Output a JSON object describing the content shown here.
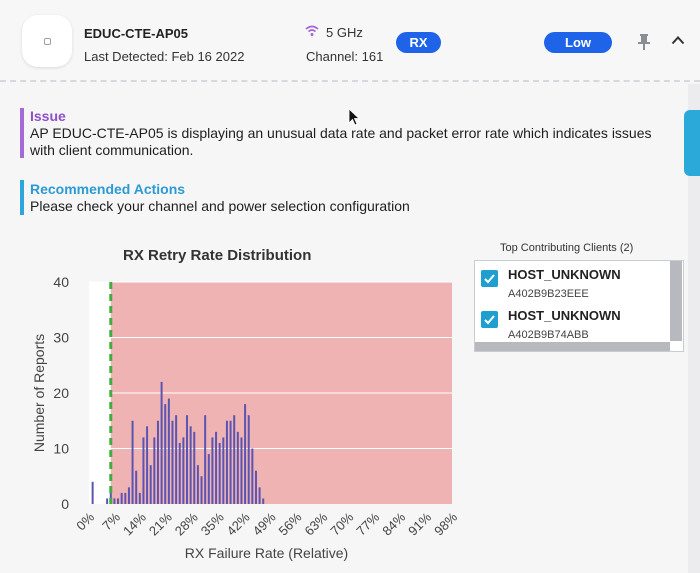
{
  "header": {
    "ap_name": "EDUC-CTE-AP05",
    "last_detected": "Last Detected: Feb 16 2022",
    "band": "5 GHz",
    "channel": "Channel: 161",
    "type_badge": "RX",
    "severity_badge": "Low"
  },
  "issue": {
    "title": "Issue",
    "text": "AP EDUC-CTE-AP05 is displaying an unusual data rate and packet error rate which indicates issues with client communication."
  },
  "recommended": {
    "title": "Recommended Actions",
    "text": "Please check your channel and power selection configuration"
  },
  "clients": {
    "title": "Top Contributing Clients (2)",
    "items": [
      {
        "name": "HOST_UNKNOWN",
        "mac": "A402B9B23EEE"
      },
      {
        "name": "HOST_UNKNOWN",
        "mac": "A402B9B74ABB"
      }
    ]
  },
  "colors": {
    "accent": "#1e63e8",
    "issue": "#8e4fc9",
    "recommended": "#2b9bd4",
    "threshold": "#3fae3f",
    "highlight_region": "#f0b3b3",
    "bars": "#5a55b2"
  },
  "chart_data": {
    "type": "bar",
    "title": "RX Retry Rate Distribution",
    "xlabel": "RX Failure Rate (Relative)",
    "ylabel": "Number of Reports",
    "ylim": [
      0,
      40
    ],
    "yticks": [
      "0",
      "10",
      "20",
      "30",
      "40"
    ],
    "xticks": [
      "0%",
      "7%",
      "14%",
      "21%",
      "28%",
      "35%",
      "42%",
      "49%",
      "56%",
      "63%",
      "70%",
      "77%",
      "84%",
      "91%",
      "98%"
    ],
    "xlim": [
      0,
      100
    ],
    "threshold": 6,
    "highlight_range": [
      6,
      100
    ],
    "grid": true,
    "x": [
      1,
      5,
      6,
      7,
      8,
      9,
      10,
      11,
      12,
      13,
      14,
      15,
      16,
      17,
      18,
      19,
      20,
      21,
      22,
      23,
      24,
      25,
      26,
      27,
      28,
      29,
      30,
      31,
      32,
      33,
      34,
      35,
      36,
      37,
      38,
      39,
      40,
      41,
      42,
      43,
      44,
      45,
      46,
      47,
      48
    ],
    "values": [
      4,
      1,
      2,
      1,
      1,
      2,
      2,
      3,
      15,
      6,
      2,
      12,
      14,
      7,
      12,
      15,
      22,
      18,
      19,
      15,
      16,
      11,
      12,
      16,
      14,
      13,
      7,
      5,
      16,
      9,
      12,
      13,
      11,
      12,
      15,
      15,
      16,
      13,
      12,
      18,
      16,
      10,
      6,
      3,
      1
    ]
  }
}
